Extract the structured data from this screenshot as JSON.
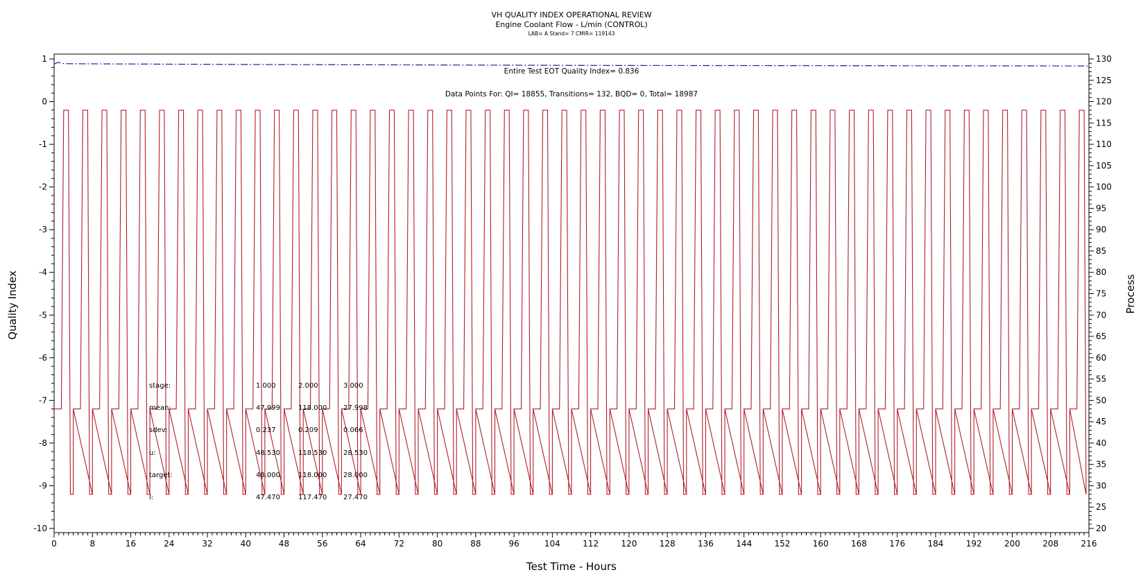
{
  "chart_data": {
    "type": "line",
    "title": "VH QUALITY INDEX OPERATIONAL REVIEW",
    "subtitle": "Engine Coolant Flow - L/min (CONTROL)",
    "info": "LAB= A Stand= 7 CMIR= 119143",
    "xlabel": "Test Time - Hours",
    "ylabel_left": "Quality Index",
    "ylabel_right": "Process",
    "xlim": [
      0,
      216
    ],
    "ylim_left": [
      -10,
      1
    ],
    "ylim_right": [
      20,
      130
    ],
    "x_ticks": [
      "0",
      "8",
      "16",
      "24",
      "32",
      "40",
      "48",
      "56",
      "64",
      "72",
      "80",
      "88",
      "96",
      "104",
      "112",
      "120",
      "128",
      "136",
      "144",
      "152",
      "160",
      "168",
      "176",
      "184",
      "192",
      "200",
      "208",
      "216"
    ],
    "y_left_ticks": [
      "1",
      "0",
      "-1",
      "-2",
      "-3",
      "-4",
      "-5",
      "-6",
      "-7",
      "-8",
      "-9",
      "-10"
    ],
    "y_right_ticks": [
      "130",
      "125",
      "120",
      "115",
      "110",
      "105",
      "100",
      "95",
      "90",
      "85",
      "80",
      "75",
      "70",
      "65",
      "60",
      "55",
      "50",
      "45",
      "40",
      "35",
      "30",
      "25",
      "20"
    ],
    "annotations": {
      "quality_index": "Entire Test EOT Quality Index=   0.836",
      "data_points": "Data Points For: QI= 18855, Transitions=   132, BQD=     0, Total= 18987"
    },
    "stats_table": {
      "row_labels": [
        "stage:",
        "mean:",
        "sdev:",
        "u:",
        "target:",
        "l:"
      ],
      "columns": [
        [
          "1.000",
          "47.999",
          "0.237",
          "48.530",
          "48.000",
          "47.470"
        ],
        [
          "2.000",
          "118.000",
          "0.209",
          "118.530",
          "118.000",
          "117.470"
        ],
        [
          "3.000",
          "27.998",
          "0.066",
          "28.530",
          "28.000",
          "27.470"
        ]
      ]
    },
    "series": [
      {
        "axis": "left",
        "color": "#1e1ea0",
        "style": "dash-dot",
        "values": [
          [
            0.0,
            0.88
          ],
          [
            0.8,
            0.92
          ],
          [
            2,
            0.89
          ],
          [
            10,
            0.885
          ],
          [
            20,
            0.88
          ],
          [
            40,
            0.87
          ],
          [
            60,
            0.865
          ],
          [
            80,
            0.858
          ],
          [
            100,
            0.852
          ],
          [
            120,
            0.848
          ],
          [
            140,
            0.845
          ],
          [
            160,
            0.842
          ],
          [
            180,
            0.84
          ],
          [
            200,
            0.838
          ],
          [
            216,
            0.836
          ]
        ]
      },
      {
        "axis": "right",
        "color": "#b01c2a",
        "cycle_hours": 4.0,
        "cycles": 54,
        "levels": [
          48,
          118,
          28
        ],
        "values": [
          [
            0.0,
            48
          ],
          [
            1.5,
            48
          ],
          [
            2.0,
            118
          ],
          [
            3.0,
            118
          ],
          [
            3.4,
            28
          ],
          [
            4.0,
            28
          ],
          [
            4.0,
            48
          ],
          [
            5.5,
            48
          ],
          [
            6.0,
            118
          ],
          [
            7.0,
            118
          ],
          [
            7.4,
            28
          ],
          [
            8.0,
            28
          ]
        ]
      }
    ]
  }
}
